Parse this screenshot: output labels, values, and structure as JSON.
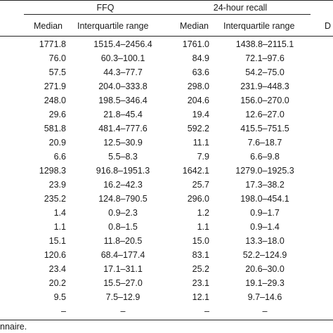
{
  "header": {
    "group1": "FFQ",
    "group2": "24-hour recall",
    "group3_partial": "D",
    "col_median_1": "Median",
    "col_iqr_1": "Interquartile range",
    "col_median_2": "Median",
    "col_iqr_2": "Interquartile range"
  },
  "rows": [
    {
      "ffq_median": "1771.8",
      "ffq_iqr": "1515.4–2456.4",
      "recall_median": "1761.0",
      "recall_iqr": "1438.8–2115.1"
    },
    {
      "ffq_median": "76.0",
      "ffq_iqr": "60.3–100.1",
      "recall_median": "84.9",
      "recall_iqr": "72.1–97.6"
    },
    {
      "ffq_median": "57.5",
      "ffq_iqr": "44.3–77.7",
      "recall_median": "63.6",
      "recall_iqr": "54.2–75.0"
    },
    {
      "ffq_median": "271.9",
      "ffq_iqr": "204.0–333.8",
      "recall_median": "298.0",
      "recall_iqr": "231.9–448.3"
    },
    {
      "ffq_median": "248.0",
      "ffq_iqr": "198.5–346.4",
      "recall_median": "204.6",
      "recall_iqr": "156.0–270.0"
    },
    {
      "ffq_median": "29.6",
      "ffq_iqr": "21.8–45.4",
      "recall_median": "19.4",
      "recall_iqr": "12.6–27.0"
    },
    {
      "ffq_median": "581.8",
      "ffq_iqr": "481.4–777.6",
      "recall_median": "592.2",
      "recall_iqr": "415.5–751.5"
    },
    {
      "ffq_median": "20.9",
      "ffq_iqr": "12.5–30.9",
      "recall_median": "11.1",
      "recall_iqr": "7.6–18.7"
    },
    {
      "ffq_median": "6.6",
      "ffq_iqr": "5.5–8.3",
      "recall_median": "7.9",
      "recall_iqr": "6.6–9.8"
    },
    {
      "ffq_median": "1298.3",
      "ffq_iqr": "916.8–1951.3",
      "recall_median": "1642.1",
      "recall_iqr": "1279.0–1925.3"
    },
    {
      "ffq_median": "23.9",
      "ffq_iqr": "16.2–42.3",
      "recall_median": "25.7",
      "recall_iqr": "17.3–38.2"
    },
    {
      "ffq_median": "235.2",
      "ffq_iqr": "124.8–790.5",
      "recall_median": "296.0",
      "recall_iqr": "198.0–454.1"
    },
    {
      "ffq_median": "1.4",
      "ffq_iqr": "0.9–2.3",
      "recall_median": "1.2",
      "recall_iqr": "0.9–1.7"
    },
    {
      "ffq_median": "1.1",
      "ffq_iqr": "0.8–1.5",
      "recall_median": "1.1",
      "recall_iqr": "0.9–1.4"
    },
    {
      "ffq_median": "15.1",
      "ffq_iqr": "11.8–20.5",
      "recall_median": "15.0",
      "recall_iqr": "13.3–18.0"
    },
    {
      "ffq_median": "120.6",
      "ffq_iqr": "68.4–177.4",
      "recall_median": "83.1",
      "recall_iqr": "52.2–124.9"
    },
    {
      "ffq_median": "23.4",
      "ffq_iqr": "17.1–31.1",
      "recall_median": "25.2",
      "recall_iqr": "20.6–30.0"
    },
    {
      "ffq_median": "20.2",
      "ffq_iqr": "15.5–27.0",
      "recall_median": "23.1",
      "recall_iqr": "19.1–29.3"
    },
    {
      "ffq_median": "9.5",
      "ffq_iqr": "7.5–12.9",
      "recall_median": "12.1",
      "recall_iqr": "9.7–14.6"
    },
    {
      "ffq_median": "–",
      "ffq_iqr": "–",
      "recall_median": "–",
      "recall_iqr": "–"
    }
  ],
  "footnote": "nnaire."
}
